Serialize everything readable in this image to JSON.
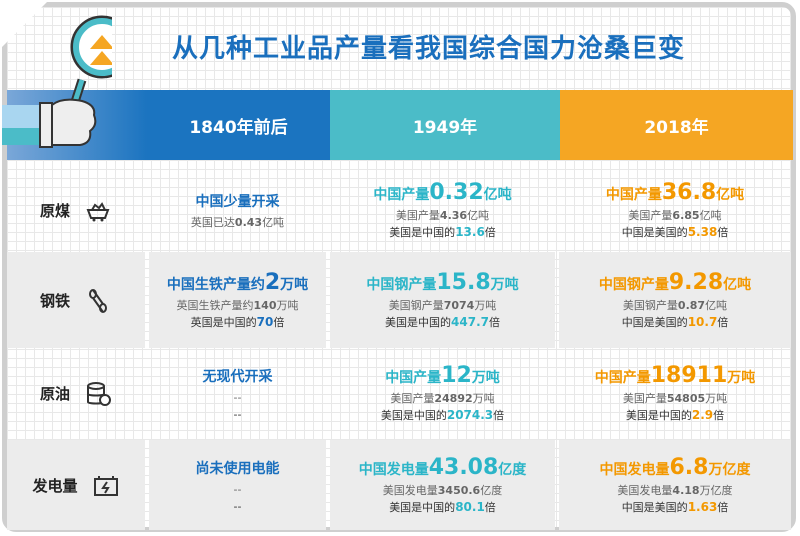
{
  "title": "从几种工业品产量看我国综合国力沧桑巨变",
  "headers": [
    "1840年前后",
    "1949年",
    "2018年"
  ],
  "colors": {
    "blue": "#1a6fbd",
    "teal": "#2bb5c8",
    "orange": "#f39800"
  },
  "rows": [
    {
      "label": "原煤",
      "icon": "coal-cart-icon",
      "c1": {
        "main": "中国少量开采",
        "l1": "英国已达",
        "l1n": "0.43",
        "l1u": "亿吨",
        "l2": "",
        "l2n": "",
        "l2u": ""
      },
      "c2": {
        "pre": "中国产量",
        "num": "0.32",
        "unit": "亿吨",
        "l1": "美国产量",
        "l1n": "4.36",
        "l1u": "亿吨",
        "l2": "美国是中国的",
        "l2n": "13.6",
        "l2u": "倍"
      },
      "c3": {
        "pre": "中国产量",
        "num": "36.8",
        "unit": "亿吨",
        "l1": "美国产量",
        "l1n": "6.85",
        "l1u": "亿吨",
        "l2": "中国是美国的",
        "l2n": "5.38",
        "l2u": "倍"
      }
    },
    {
      "label": "钢铁",
      "icon": "steel-pipes-icon",
      "c1": {
        "pre": "中国生铁产量约",
        "num": "2",
        "unit": "万吨",
        "l1": "英国生铁产量约",
        "l1n": "140",
        "l1u": "万吨",
        "l2": "英国是中国的",
        "l2n": "70",
        "l2u": "倍"
      },
      "c2": {
        "pre": "中国钢产量",
        "num": "15.8",
        "unit": "万吨",
        "l1": "美国钢产量",
        "l1n": "7074",
        "l1u": "万吨",
        "l2": "美国是中国的",
        "l2n": "447.7",
        "l2u": "倍"
      },
      "c3": {
        "pre": "中国钢产量",
        "num": "9.28",
        "unit": "亿吨",
        "l1": "美国钢产量",
        "l1n": "0.87",
        "l1u": "亿吨",
        "l2": "中国是美国的",
        "l2n": "10.7",
        "l2u": "倍"
      }
    },
    {
      "label": "原油",
      "icon": "oil-barrel-icon",
      "c1": {
        "main": "无现代开采",
        "l1": "--",
        "l2": "--"
      },
      "c2": {
        "pre": "中国产量",
        "num": "12",
        "unit": "万吨",
        "l1": "美国产量",
        "l1n": "24892",
        "l1u": "万吨",
        "l2": "美国是中国的",
        "l2n": "2074.3",
        "l2u": "倍"
      },
      "c3": {
        "pre": "中国产量",
        "num": "18911",
        "unit": "万吨",
        "l1": "美国产量",
        "l1n": "54805",
        "l1u": "万吨",
        "l2": "美国是中国的",
        "l2n": "2.9",
        "l2u": "倍"
      }
    },
    {
      "label": "发电量",
      "icon": "battery-icon",
      "c1": {
        "main": "尚未使用电能",
        "l1": "--",
        "l2": "--"
      },
      "c2": {
        "pre": "中国发电量",
        "num": "43.08",
        "unit": "亿度",
        "l1": "美国发电量",
        "l1n": "3450.6",
        "l1u": "亿度",
        "l2": "美国是中国的",
        "l2n": "80.1",
        "l2u": "倍"
      },
      "c3": {
        "pre": "中国发电量",
        "num": "6.8",
        "unit": "万亿度",
        "l1": "美国发电量",
        "l1n": "4.18",
        "l1u": "万亿度",
        "l2": "中国是美国的",
        "l2n": "1.63",
        "l2u": "倍"
      }
    }
  ]
}
